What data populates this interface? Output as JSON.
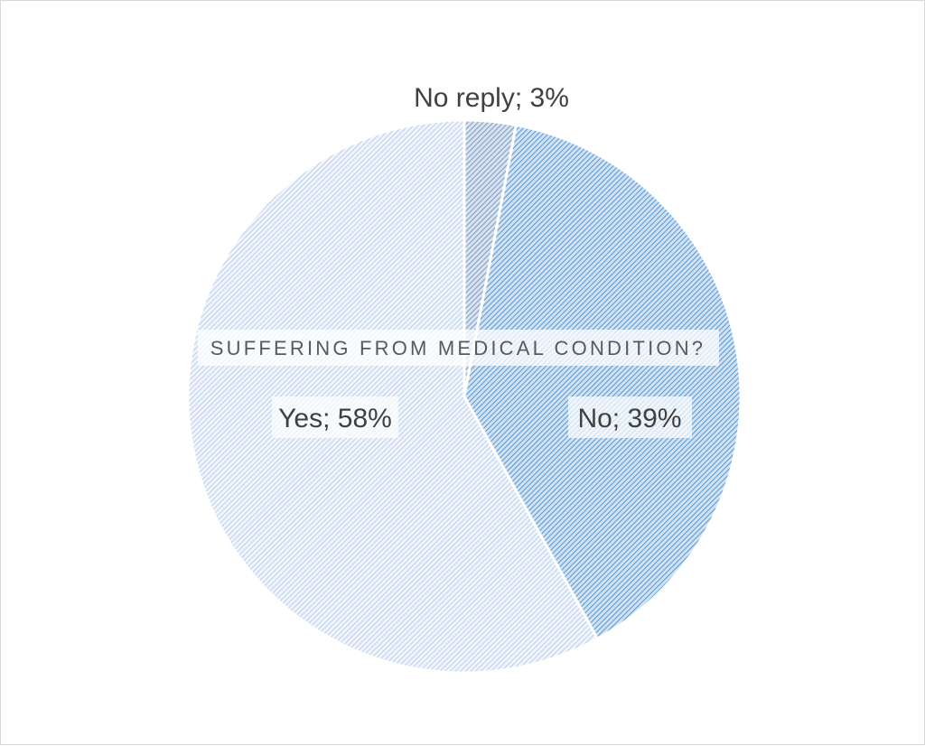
{
  "chart_data": {
    "type": "pie",
    "title": "SUFFERING FROM MEDICAL CONDITION?",
    "slices": [
      {
        "label": "No reply",
        "value": 3,
        "data_label": "No reply; 3%",
        "color": "#7f9fc9"
      },
      {
        "label": "No",
        "value": 39,
        "data_label": "No; 39%",
        "color": "#5b9bd5"
      },
      {
        "label": "Yes",
        "value": 58,
        "data_label": "Yes; 58%",
        "color": "#a9c5ea"
      }
    ],
    "legend": "none",
    "start_angle": "12 o'clock, clockwise"
  }
}
